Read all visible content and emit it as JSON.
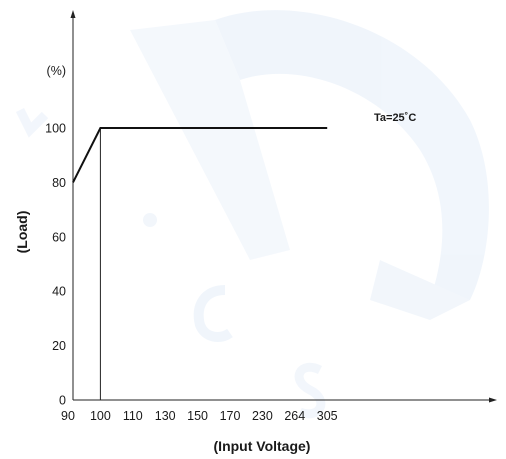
{
  "chart_data": {
    "type": "line",
    "xlabel": "(Input Voltage)",
    "ylabel": "(Load)",
    "y_unit": "(%)",
    "annotation": "Ta=25˚C",
    "x_ticks": [
      "90",
      "100",
      "110",
      "130",
      "150",
      "170",
      "230",
      "264",
      "305"
    ],
    "y_ticks": [
      "0",
      "20",
      "40",
      "60",
      "80",
      "100"
    ],
    "ylim": [
      0,
      100
    ],
    "grid": false,
    "reference_line_x": "100",
    "series": [
      {
        "x": [
          "90",
          "100",
          "305"
        ],
        "y": [
          80,
          100,
          100
        ]
      }
    ]
  }
}
